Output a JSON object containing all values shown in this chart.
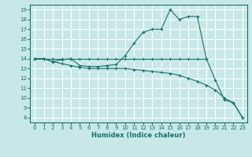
{
  "xlabel": "Humidex (Indice chaleur)",
  "bg_color": "#c8e8e8",
  "line_color": "#1a7070",
  "grid_color": "#ffffff",
  "xlim": [
    -0.5,
    23.5
  ],
  "ylim": [
    7.5,
    19.5
  ],
  "xticks": [
    0,
    1,
    2,
    3,
    4,
    5,
    6,
    7,
    8,
    9,
    10,
    11,
    12,
    13,
    14,
    15,
    16,
    17,
    18,
    19,
    20,
    21,
    22,
    23
  ],
  "yticks": [
    8,
    9,
    10,
    11,
    12,
    13,
    14,
    15,
    16,
    17,
    18,
    19
  ],
  "line1_x": [
    0,
    1,
    2,
    3,
    4,
    5,
    6,
    7,
    8,
    9,
    10,
    11,
    12,
    13,
    14,
    15,
    16,
    17,
    18,
    19
  ],
  "line1_y": [
    14,
    14,
    14,
    14,
    14,
    14,
    14,
    14,
    14,
    14,
    14,
    14,
    14,
    14,
    14,
    14,
    14,
    14,
    14,
    14
  ],
  "line2_x": [
    0,
    1,
    2,
    3,
    4,
    5,
    6,
    7,
    8,
    9,
    10,
    11,
    12,
    13,
    14,
    15,
    16,
    17,
    18,
    19,
    20,
    21,
    22,
    23
  ],
  "line2_y": [
    14,
    14,
    13.7,
    13.9,
    14.0,
    13.3,
    13.2,
    13.2,
    13.3,
    13.4,
    14.3,
    15.6,
    16.7,
    17.0,
    17.0,
    19.0,
    18.0,
    18.3,
    18.3,
    14.0,
    11.8,
    9.8,
    9.5,
    8.0
  ],
  "line3_x": [
    0,
    1,
    2,
    3,
    4,
    5,
    6,
    7,
    8,
    9,
    10,
    11,
    12,
    13,
    14,
    15,
    16,
    17,
    18,
    19,
    20,
    21,
    22,
    23
  ],
  "line3_y": [
    14,
    14,
    13.7,
    13.5,
    13.3,
    13.1,
    13.0,
    13.0,
    13.0,
    13.0,
    13.0,
    12.9,
    12.8,
    12.7,
    12.6,
    12.5,
    12.3,
    12.0,
    11.7,
    11.3,
    10.8,
    10.0,
    9.5,
    8.0
  ]
}
